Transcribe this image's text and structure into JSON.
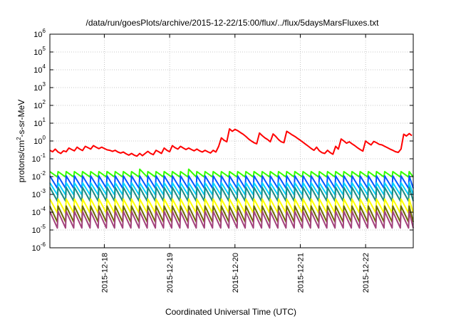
{
  "chart_data": {
    "type": "line",
    "title": "/data/run/goesPlots/archive/2015-12-22/15:00/flux/../flux/5daysMarsFluxes.txt",
    "xlabel": "Coordinated Universal Time (UTC)",
    "ylabel": "protons/cm²-s-sr-MeV",
    "ylabel_parts": {
      "pre": "protons/cm",
      "sup": "2",
      "post": "-s-sr-MeV"
    },
    "yscale": "log",
    "ylim": [
      1e-06,
      1000000.0
    ],
    "xlim": [
      "2015-12-17T04:00",
      "2015-12-22T17:30"
    ],
    "grid": true,
    "x_ticks": [
      {
        "label": "2015-12-18",
        "x": "2015-12-18T00:00"
      },
      {
        "label": "2015-12-19",
        "x": "2015-12-19T00:00"
      },
      {
        "label": "2015-12-20",
        "x": "2015-12-20T00:00"
      },
      {
        "label": "2015-12-21",
        "x": "2015-12-21T00:00"
      },
      {
        "label": "2015-12-22",
        "x": "2015-12-22T00:00"
      }
    ],
    "y_ticks": [
      {
        "value": 1e-06,
        "base": "10",
        "exp": "-6"
      },
      {
        "value": 1e-05,
        "base": "10",
        "exp": "-5"
      },
      {
        "value": 0.0001,
        "base": "10",
        "exp": "-4"
      },
      {
        "value": 0.001,
        "base": "10",
        "exp": "-3"
      },
      {
        "value": 0.01,
        "base": "10",
        "exp": "-2"
      },
      {
        "value": 0.1,
        "base": "10",
        "exp": "-1"
      },
      {
        "value": 1,
        "base": "10",
        "exp": "0"
      },
      {
        "value": 10,
        "base": "10",
        "exp": "1"
      },
      {
        "value": 100,
        "base": "10",
        "exp": "2"
      },
      {
        "value": 1000,
        "base": "10",
        "exp": "3"
      },
      {
        "value": 10000,
        "base": "10",
        "exp": "4"
      },
      {
        "value": 100000,
        "base": "10",
        "exp": "5"
      },
      {
        "value": 1000000,
        "base": "10",
        "exp": "6"
      }
    ],
    "series": [
      {
        "color": "#ff0000",
        "points": [
          [
            "2015-12-17T04:00",
            0.3
          ],
          [
            "2015-12-17T05:00",
            0.25
          ],
          [
            "2015-12-17T06:00",
            0.35
          ],
          [
            "2015-12-17T07:00",
            0.24
          ],
          [
            "2015-12-17T08:00",
            0.2
          ],
          [
            "2015-12-17T09:00",
            0.28
          ],
          [
            "2015-12-17T10:00",
            0.25
          ],
          [
            "2015-12-17T11:00",
            0.4
          ],
          [
            "2015-12-17T12:00",
            0.33
          ],
          [
            "2015-12-17T13:00",
            0.28
          ],
          [
            "2015-12-17T14:00",
            0.45
          ],
          [
            "2015-12-17T15:00",
            0.35
          ],
          [
            "2015-12-17T16:00",
            0.29
          ],
          [
            "2015-12-17T17:00",
            0.5
          ],
          [
            "2015-12-17T18:00",
            0.42
          ],
          [
            "2015-12-17T19:00",
            0.35
          ],
          [
            "2015-12-17T20:00",
            0.55
          ],
          [
            "2015-12-17T21:00",
            0.45
          ],
          [
            "2015-12-17T22:00",
            0.37
          ],
          [
            "2015-12-17T23:00",
            0.45
          ],
          [
            "2015-12-18T00:00",
            0.38
          ],
          [
            "2015-12-18T01:00",
            0.32
          ],
          [
            "2015-12-18T02:00",
            0.3
          ],
          [
            "2015-12-18T03:00",
            0.26
          ],
          [
            "2015-12-18T04:00",
            0.3
          ],
          [
            "2015-12-18T05:00",
            0.24
          ],
          [
            "2015-12-18T06:00",
            0.21
          ],
          [
            "2015-12-18T07:00",
            0.24
          ],
          [
            "2015-12-18T08:00",
            0.19
          ],
          [
            "2015-12-18T09:00",
            0.16
          ],
          [
            "2015-12-18T10:00",
            0.2
          ],
          [
            "2015-12-18T11:00",
            0.16
          ],
          [
            "2015-12-18T12:00",
            0.14
          ],
          [
            "2015-12-18T13:00",
            0.2
          ],
          [
            "2015-12-18T14:00",
            0.15
          ],
          [
            "2015-12-18T15:00",
            0.2
          ],
          [
            "2015-12-18T16:00",
            0.26
          ],
          [
            "2015-12-18T17:00",
            0.2
          ],
          [
            "2015-12-18T18:00",
            0.17
          ],
          [
            "2015-12-18T19:00",
            0.3
          ],
          [
            "2015-12-18T20:00",
            0.25
          ],
          [
            "2015-12-18T21:00",
            0.2
          ],
          [
            "2015-12-18T22:00",
            0.4
          ],
          [
            "2015-12-18T23:00",
            0.3
          ],
          [
            "2015-12-19T00:00",
            0.25
          ],
          [
            "2015-12-19T01:00",
            0.55
          ],
          [
            "2015-12-19T02:00",
            0.42
          ],
          [
            "2015-12-19T03:00",
            0.35
          ],
          [
            "2015-12-19T04:00",
            0.5
          ],
          [
            "2015-12-19T05:00",
            0.4
          ],
          [
            "2015-12-19T06:00",
            0.33
          ],
          [
            "2015-12-19T07:00",
            0.4
          ],
          [
            "2015-12-19T08:00",
            0.33
          ],
          [
            "2015-12-19T09:00",
            0.28
          ],
          [
            "2015-12-19T10:00",
            0.35
          ],
          [
            "2015-12-19T11:00",
            0.28
          ],
          [
            "2015-12-19T12:00",
            0.24
          ],
          [
            "2015-12-19T13:00",
            0.3
          ],
          [
            "2015-12-19T14:00",
            0.25
          ],
          [
            "2015-12-19T15:00",
            0.21
          ],
          [
            "2015-12-19T16:00",
            0.3
          ],
          [
            "2015-12-19T17:00",
            0.24
          ],
          [
            "2015-12-19T18:00",
            0.5
          ],
          [
            "2015-12-19T19:00",
            1.5
          ],
          [
            "2015-12-19T20:00",
            1.1
          ],
          [
            "2015-12-19T21:00",
            0.9
          ],
          [
            "2015-12-19T22:00",
            4.8
          ],
          [
            "2015-12-19T23:00",
            3.5
          ],
          [
            "2015-12-20T00:00",
            4.5
          ],
          [
            "2015-12-20T01:00",
            3.8
          ],
          [
            "2015-12-20T02:00",
            3.0
          ],
          [
            "2015-12-20T03:00",
            2.4
          ],
          [
            "2015-12-20T04:00",
            1.8
          ],
          [
            "2015-12-20T05:00",
            1.3
          ],
          [
            "2015-12-20T06:00",
            1.0
          ],
          [
            "2015-12-20T07:00",
            0.8
          ],
          [
            "2015-12-20T08:00",
            0.7
          ],
          [
            "2015-12-20T09:00",
            2.8
          ],
          [
            "2015-12-20T10:00",
            2.0
          ],
          [
            "2015-12-20T11:00",
            1.5
          ],
          [
            "2015-12-20T12:00",
            1.2
          ],
          [
            "2015-12-20T13:00",
            0.9
          ],
          [
            "2015-12-20T14:00",
            2.5
          ],
          [
            "2015-12-20T15:00",
            1.8
          ],
          [
            "2015-12-20T16:00",
            1.2
          ],
          [
            "2015-12-20T17:00",
            0.9
          ],
          [
            "2015-12-20T18:00",
            0.8
          ],
          [
            "2015-12-20T19:00",
            3.5
          ],
          [
            "2015-12-20T20:00",
            2.8
          ],
          [
            "2015-12-20T21:00",
            2.2
          ],
          [
            "2015-12-20T22:00",
            1.8
          ],
          [
            "2015-12-20T23:00",
            1.4
          ],
          [
            "2015-12-21T00:00",
            1.1
          ],
          [
            "2015-12-21T01:00",
            0.85
          ],
          [
            "2015-12-21T02:00",
            0.65
          ],
          [
            "2015-12-21T03:00",
            0.5
          ],
          [
            "2015-12-21T04:00",
            0.38
          ],
          [
            "2015-12-21T05:00",
            0.3
          ],
          [
            "2015-12-21T06:00",
            0.45
          ],
          [
            "2015-12-21T07:00",
            0.28
          ],
          [
            "2015-12-21T08:00",
            0.22
          ],
          [
            "2015-12-21T09:00",
            0.2
          ],
          [
            "2015-12-21T10:00",
            0.3
          ],
          [
            "2015-12-21T11:00",
            0.22
          ],
          [
            "2015-12-21T12:00",
            0.18
          ],
          [
            "2015-12-21T13:00",
            0.5
          ],
          [
            "2015-12-21T14:00",
            0.35
          ],
          [
            "2015-12-21T15:00",
            1.3
          ],
          [
            "2015-12-21T16:00",
            1.0
          ],
          [
            "2015-12-21T17:00",
            0.75
          ],
          [
            "2015-12-21T18:00",
            0.9
          ],
          [
            "2015-12-21T19:00",
            0.7
          ],
          [
            "2015-12-21T20:00",
            0.55
          ],
          [
            "2015-12-21T21:00",
            0.42
          ],
          [
            "2015-12-21T22:00",
            0.33
          ],
          [
            "2015-12-21T23:00",
            0.27
          ],
          [
            "2015-12-22T00:00",
            1.0
          ],
          [
            "2015-12-22T01:00",
            0.75
          ],
          [
            "2015-12-22T02:00",
            0.6
          ],
          [
            "2015-12-22T03:00",
            0.95
          ],
          [
            "2015-12-22T04:00",
            0.8
          ],
          [
            "2015-12-22T05:00",
            0.65
          ],
          [
            "2015-12-22T06:00",
            0.6
          ],
          [
            "2015-12-22T07:00",
            0.5
          ],
          [
            "2015-12-22T08:00",
            0.42
          ],
          [
            "2015-12-22T09:00",
            0.35
          ],
          [
            "2015-12-22T10:00",
            0.3
          ],
          [
            "2015-12-22T11:00",
            0.25
          ],
          [
            "2015-12-22T12:00",
            0.23
          ],
          [
            "2015-12-22T13:00",
            0.35
          ],
          [
            "2015-12-22T14:00",
            2.4
          ],
          [
            "2015-12-22T15:00",
            1.9
          ],
          [
            "2015-12-22T16:00",
            2.6
          ],
          [
            "2015-12-22T17:00",
            2.0
          ]
        ]
      },
      {
        "color": "#33ff00",
        "cycle_hours": 3,
        "peak": 0.019,
        "trough": 0.0095,
        "peak_overrides": [
          [
            "2015-12-18T12:00",
            0.026
          ],
          [
            "2015-12-19T06:00",
            0.026
          ]
        ]
      },
      {
        "color": "#0055ff",
        "cycle_hours": 3,
        "peak": 0.011,
        "trough": 0.0022,
        "peak_overrides": []
      },
      {
        "color": "#00d2ff",
        "cycle_hours": 3,
        "peak": 0.0045,
        "trough": 0.00095,
        "peak_overrides": []
      },
      {
        "color": "#1c8c83",
        "cycle_hours": 3,
        "peak": 0.0025,
        "trough": 0.00042,
        "peak_overrides": []
      },
      {
        "color": "#ffff00",
        "cycle_hours": 3,
        "peak": 0.00055,
        "trough": 9e-05,
        "peak_overrides": []
      },
      {
        "color": "#6b6b00",
        "cycle_hours": 3,
        "peak": 0.00022,
        "trough": 2.8e-05,
        "peak_overrides": []
      },
      {
        "color": "#a3437d",
        "cycle_hours": 3,
        "peak": 0.00011,
        "trough": 1.3e-05,
        "peak_overrides": []
      }
    ]
  }
}
